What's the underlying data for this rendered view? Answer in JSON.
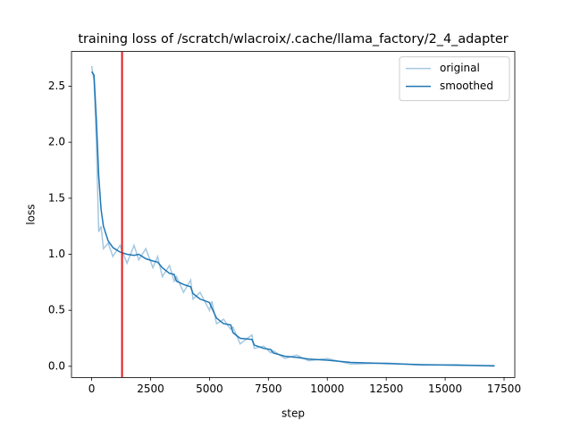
{
  "chart_data": {
    "type": "line",
    "title": "training loss of /scratch/wlacroix/.cache/llama_factory/2_4_adapter",
    "xlabel": "step",
    "ylabel": "loss",
    "x": [
      0,
      100,
      200,
      300,
      400,
      500,
      700,
      900,
      1200,
      1500,
      1800,
      2000,
      2300,
      2600,
      2800,
      3000,
      3300,
      3500,
      3600,
      3900,
      4200,
      4300,
      4600,
      5000,
      5100,
      5300,
      5600,
      5900,
      6000,
      6300,
      6800,
      6900,
      7300,
      7600,
      7700,
      8200,
      8700,
      9200,
      10000,
      11000,
      12500,
      14000,
      15500,
      17100
    ],
    "series": [
      {
        "name": "original",
        "color": "#a5c8e1",
        "values": [
          2.68,
          2.55,
          2.0,
          1.2,
          1.25,
          1.05,
          1.1,
          0.98,
          1.08,
          0.92,
          1.08,
          0.95,
          1.05,
          0.88,
          0.98,
          0.8,
          0.9,
          0.76,
          0.8,
          0.66,
          0.77,
          0.6,
          0.66,
          0.5,
          0.58,
          0.38,
          0.42,
          0.33,
          0.35,
          0.2,
          0.28,
          0.16,
          0.18,
          0.12,
          0.14,
          0.07,
          0.1,
          0.05,
          0.07,
          0.02,
          0.03,
          0.01,
          0.015,
          0.0
        ]
      },
      {
        "name": "smoothed",
        "color": "#1f77b4",
        "values": [
          2.63,
          2.6,
          2.2,
          1.7,
          1.4,
          1.25,
          1.12,
          1.06,
          1.02,
          1.0,
          0.99,
          1.0,
          0.96,
          0.94,
          0.93,
          0.88,
          0.83,
          0.82,
          0.76,
          0.73,
          0.71,
          0.65,
          0.6,
          0.57,
          0.52,
          0.43,
          0.38,
          0.37,
          0.3,
          0.25,
          0.24,
          0.19,
          0.16,
          0.15,
          0.12,
          0.09,
          0.08,
          0.065,
          0.055,
          0.035,
          0.025,
          0.015,
          0.01,
          0.005
        ]
      }
    ],
    "vline": {
      "x": 1290,
      "color": "#e31a1c"
    },
    "xlim": [
      -855,
      17955
    ],
    "xticks": [
      0,
      2500,
      5000,
      7500,
      10000,
      12500,
      15000,
      17500
    ],
    "ylim": [
      -0.1,
      2.81
    ],
    "yticks": [
      {
        "value": 0,
        "label": "0.0"
      },
      0.5,
      {
        "value": 1,
        "label": "1.0"
      },
      1.5,
      {
        "value": 2,
        "label": "2.0"
      },
      2.5
    ],
    "legend": "upper right"
  }
}
